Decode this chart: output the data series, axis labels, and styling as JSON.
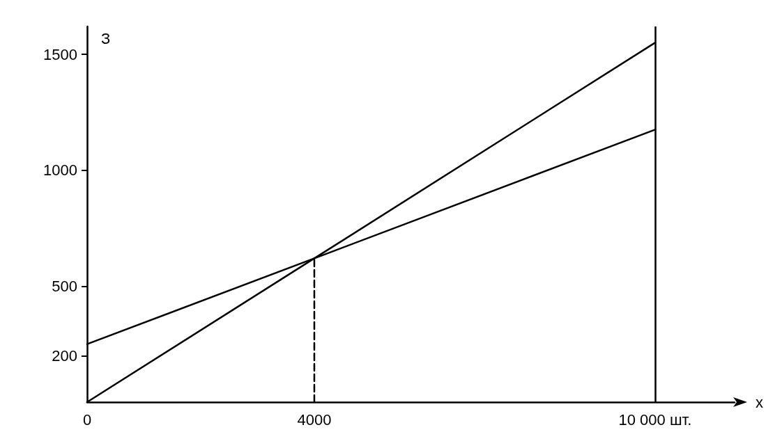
{
  "chart_data": {
    "type": "line",
    "ylabel": "З",
    "xlabel": "x",
    "xlim": [
      0,
      11400
    ],
    "xticks": [
      0,
      4000,
      {
        "value": 10000,
        "label": "10 000 шт."
      }
    ],
    "ylim": [
      0,
      1620
    ],
    "yticks": [
      200,
      500,
      1000,
      1500
    ],
    "marker": "none",
    "line_style": "solid",
    "series": [
      {
        "color": "#000000",
        "x": [
          0,
          4000,
          10000
        ],
        "values": [
          0,
          620,
          1550
        ]
      },
      {
        "color": "#000000",
        "x": [
          0,
          4000,
          10000
        ],
        "values": [
          250,
          620,
          1175
        ]
      },
      {
        "color": "#000000",
        "x": [
          4000,
          4000
        ],
        "values": [
          0,
          620
        ],
        "line_style": "dashed"
      }
    ],
    "ref_lines": [
      {
        "axis": "x",
        "value": 10000,
        "color": "#000000",
        "line_style": "solid"
      }
    ]
  }
}
